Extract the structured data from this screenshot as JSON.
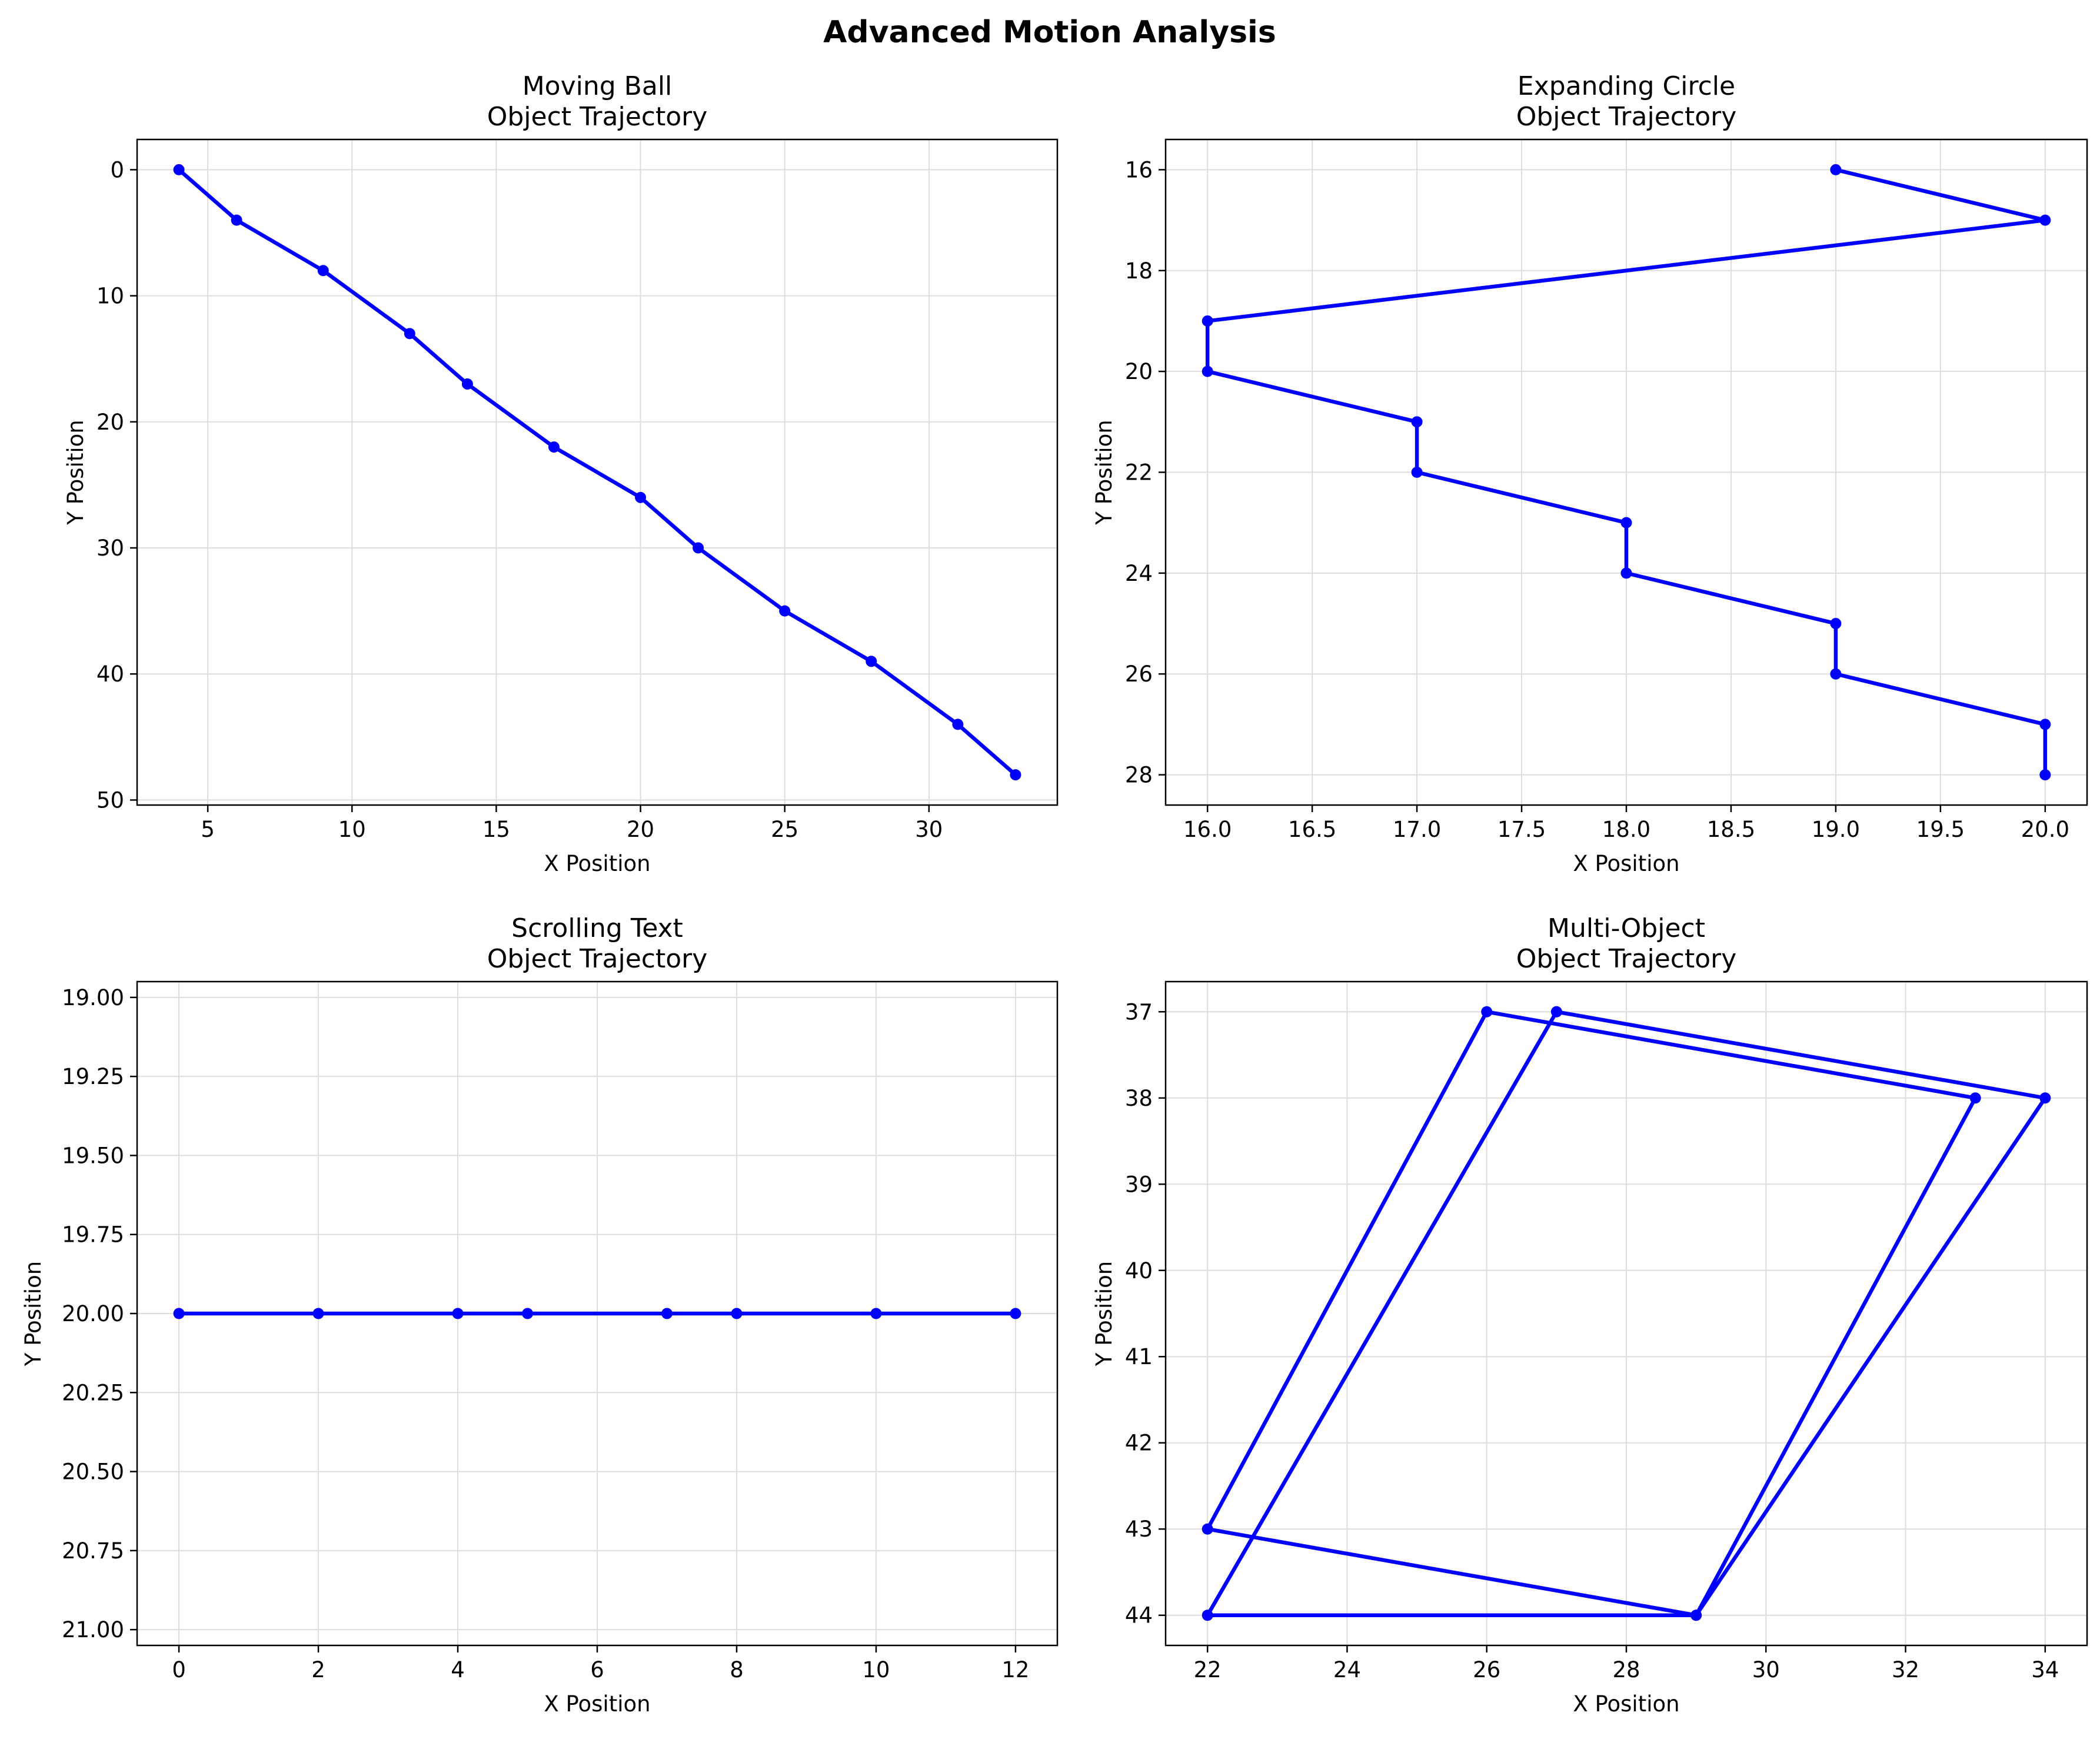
{
  "suptitle": "Advanced Motion Analysis",
  "colors": {
    "line": "#0000ff",
    "grid": "#dddddd",
    "axes": "#000000"
  },
  "chart_data": [
    {
      "type": "line",
      "title": "Moving Ball",
      "subtitle": "Object Trajectory",
      "xlabel": "X Position",
      "ylabel": "Y Position",
      "xlim": [
        2.55,
        34.45
      ],
      "ylim": [
        -2.4,
        50.4
      ],
      "y_inverted": true,
      "grid": true,
      "xticks": [
        5,
        10,
        15,
        20,
        25,
        30
      ],
      "yticks": [
        0,
        10,
        20,
        30,
        40,
        50
      ],
      "xtick_labels": [
        "5",
        "10",
        "15",
        "20",
        "25",
        "30"
      ],
      "ytick_labels": [
        "0",
        "10",
        "20",
        "30",
        "40",
        "50"
      ],
      "x": [
        4,
        6,
        9,
        12,
        14,
        17,
        20,
        22,
        25,
        28,
        31,
        33
      ],
      "y": [
        0,
        4,
        8,
        13,
        17,
        22,
        26,
        30,
        35,
        39,
        44,
        48
      ]
    },
    {
      "type": "line",
      "title": "Expanding Circle",
      "subtitle": "Object Trajectory",
      "xlabel": "X Position",
      "ylabel": "Y Position",
      "xlim": [
        15.8,
        20.2
      ],
      "ylim": [
        15.4,
        28.6
      ],
      "y_inverted": true,
      "grid": true,
      "xticks": [
        16.0,
        16.5,
        17.0,
        17.5,
        18.0,
        18.5,
        19.0,
        19.5,
        20.0
      ],
      "yticks": [
        16,
        18,
        20,
        22,
        24,
        26,
        28
      ],
      "xtick_labels": [
        "16.0",
        "16.5",
        "17.0",
        "17.5",
        "18.0",
        "18.5",
        "19.0",
        "19.5",
        "20.0"
      ],
      "ytick_labels": [
        "16",
        "18",
        "20",
        "22",
        "24",
        "26",
        "28"
      ],
      "x": [
        19,
        20,
        16,
        16,
        17,
        17,
        18,
        18,
        19,
        19,
        20,
        20
      ],
      "y": [
        16,
        17,
        19,
        20,
        21,
        22,
        23,
        24,
        25,
        26,
        27,
        28
      ]
    },
    {
      "type": "line",
      "title": "Scrolling Text",
      "subtitle": "Object Trajectory",
      "xlabel": "X Position",
      "ylabel": "Y Position",
      "xlim": [
        -0.6,
        12.6
      ],
      "ylim": [
        18.95,
        21.05
      ],
      "y_inverted": true,
      "grid": true,
      "xticks": [
        0,
        2,
        4,
        6,
        8,
        10,
        12
      ],
      "yticks": [
        19.0,
        19.25,
        19.5,
        19.75,
        20.0,
        20.25,
        20.5,
        20.75,
        21.0
      ],
      "xtick_labels": [
        "0",
        "2",
        "4",
        "6",
        "8",
        "10",
        "12"
      ],
      "ytick_labels": [
        "19.00",
        "19.25",
        "19.50",
        "19.75",
        "20.00",
        "20.25",
        "20.50",
        "20.75",
        "21.00"
      ],
      "x": [
        0,
        2,
        4,
        5,
        7,
        8,
        10,
        12
      ],
      "y": [
        20,
        20,
        20,
        20,
        20,
        20,
        20,
        20
      ]
    },
    {
      "type": "line",
      "title": "Multi-Object",
      "subtitle": "Object Trajectory",
      "xlabel": "X Position",
      "ylabel": "Y Position",
      "xlim": [
        21.4,
        34.6
      ],
      "ylim": [
        36.65,
        44.35
      ],
      "y_inverted": true,
      "grid": true,
      "xticks": [
        22,
        24,
        26,
        28,
        30,
        32,
        34
      ],
      "yticks": [
        37,
        38,
        39,
        40,
        41,
        42,
        43,
        44
      ],
      "xtick_labels": [
        "22",
        "24",
        "26",
        "28",
        "30",
        "32",
        "34"
      ],
      "ytick_labels": [
        "37",
        "38",
        "39",
        "40",
        "41",
        "42",
        "43",
        "44"
      ],
      "x": [
        27,
        34,
        29,
        22,
        26,
        33,
        29,
        22,
        27
      ],
      "y": [
        37,
        38,
        44,
        43,
        37,
        38,
        44,
        44,
        37
      ]
    }
  ]
}
